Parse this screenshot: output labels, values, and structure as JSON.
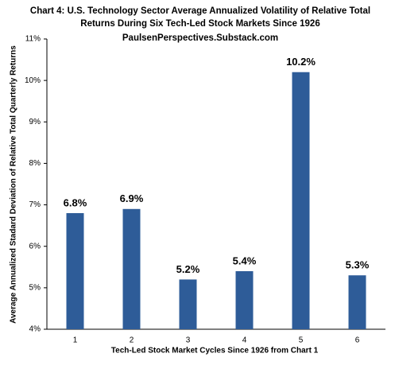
{
  "chart_data": {
    "type": "bar",
    "title": [
      "Chart 4: U.S. Technology Sector Average Annualized Volatility of Relative Total",
      "Returns During Six Tech-Led Stock Markets Since 1926"
    ],
    "subtitle": "PaulsenPerspectives.Substack.com",
    "x_label": "Tech-Led Stock Market Cycles Since 1926 from Chart 1",
    "y_label": "Average Annualized Stadard Deviation of Relative Total Quarterly Returns",
    "categories": [
      "1",
      "2",
      "3",
      "4",
      "5",
      "6"
    ],
    "values": [
      6.8,
      6.9,
      5.2,
      5.4,
      10.2,
      5.3
    ],
    "value_labels": [
      "6.8%",
      "6.9%",
      "5.2%",
      "5.4%",
      "10.2%",
      "5.3%"
    ],
    "color": "#2e5c98",
    "ylim": [
      4,
      11
    ],
    "yticks": [
      {
        "value": 4,
        "label": "4%"
      },
      {
        "value": 5,
        "label": "5%"
      },
      {
        "value": 6,
        "label": "6%"
      },
      {
        "value": 7,
        "label": "7%"
      },
      {
        "value": 8,
        "label": "8%"
      },
      {
        "value": 9,
        "label": "9%"
      },
      {
        "value": 10,
        "label": "10%"
      },
      {
        "value": 11,
        "label": "11%"
      }
    ],
    "grid": false
  }
}
